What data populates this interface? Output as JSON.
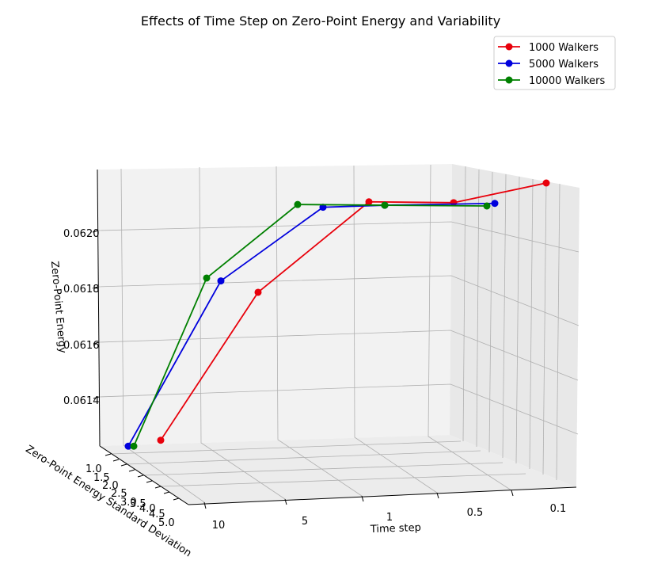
{
  "chart_data": {
    "type": "line",
    "projection": "3d",
    "title": "Effects of Time Step on Zero-Point Energy and Variability",
    "xlabel": "Time step",
    "ylabel": "Zero-Point Energy Standard Deviation",
    "zlabel": "Zero-Point Energy",
    "x_ticks": [
      "10",
      "5",
      "1",
      "0.5",
      "0.1"
    ],
    "y_ticks": [
      "1.0",
      "1.5",
      "2.0",
      "2.5",
      "3.0",
      "3.5",
      "4.0",
      "4.5",
      "5.0"
    ],
    "z_ticks": [
      "0.0614",
      "0.0616",
      "0.0618",
      "0.0620"
    ],
    "zlim": [
      0.06128,
      0.06224
    ],
    "grid": true,
    "legend_position": "top-right",
    "x": [
      "10",
      "5",
      "1",
      "0.5",
      "0.1"
    ],
    "series": [
      {
        "name": "1000 Walkers",
        "color": "#e8000b",
        "values": [
          0.06131,
          0.06181,
          0.06215,
          0.06217,
          0.06224
        ]
      },
      {
        "name": "5000 Walkers",
        "color": "#0000dd",
        "values": [
          0.06129,
          0.06185,
          0.06213,
          0.06216,
          0.06216
        ]
      },
      {
        "name": "10000 Walkers",
        "color": "#008000",
        "values": [
          0.06129,
          0.06186,
          0.06214,
          0.06216,
          0.06215
        ]
      }
    ]
  }
}
